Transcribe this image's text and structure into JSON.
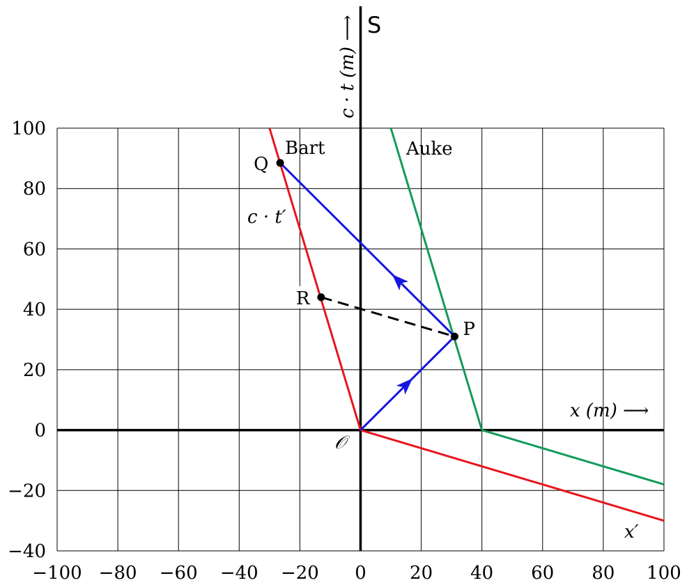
{
  "chart_data": {
    "type": "minkowski-diagram",
    "frame_label": "S",
    "xlim": [
      -100,
      100
    ],
    "ylim": [
      -40,
      100
    ],
    "grid_step": 20,
    "grid": true,
    "x_axis_label": "x  (m) ⟶",
    "y_axis_label": "c · t  (m) ⟶",
    "x_ticks": [
      "−100",
      "−80",
      "−60",
      "−40",
      "−20",
      "0",
      "20",
      "40",
      "60",
      "80",
      "100"
    ],
    "y_ticks": [
      "−40",
      "−20",
      "0",
      "20",
      "40",
      "60",
      "80",
      "100"
    ],
    "colors": {
      "red": "#e8141e",
      "green": "#129a5a",
      "blue": "#1515e0",
      "black": "#000000"
    },
    "lines": [
      {
        "name": "Bart",
        "color": "red",
        "points": [
          [
            0,
            0
          ],
          [
            -30,
            100
          ]
        ]
      },
      {
        "name": "x′",
        "color": "red",
        "points": [
          [
            0,
            0
          ],
          [
            100,
            -30
          ]
        ]
      },
      {
        "name": "Auke",
        "color": "green",
        "points": [
          [
            40,
            0
          ],
          [
            10,
            100
          ]
        ]
      },
      {
        "name": "",
        "color": "green",
        "points": [
          [
            40,
            0
          ],
          [
            100,
            -18
          ]
        ]
      },
      {
        "name": "",
        "color": "blue",
        "arrow_at": 0.5,
        "points": [
          [
            0,
            0
          ],
          [
            31,
            31
          ]
        ]
      },
      {
        "name": "",
        "color": "blue",
        "arrow_at": 0.33,
        "points": [
          [
            31,
            31
          ],
          [
            -26.5,
            88.5
          ]
        ]
      },
      {
        "name": "",
        "color": "black",
        "dashed": true,
        "points": [
          [
            -13,
            44
          ],
          [
            31,
            31
          ]
        ]
      }
    ],
    "points": [
      {
        "label": "P",
        "x": 31,
        "y": 31
      },
      {
        "label": "Q",
        "x": -26.5,
        "y": 88.5
      },
      {
        "label": "R",
        "x": -13,
        "y": 44
      }
    ],
    "line_labels": {
      "bart": "Bart",
      "auke": "Auke",
      "ct_prime": "c · t′",
      "x_prime": "x′",
      "origin": "𝒪"
    }
  }
}
